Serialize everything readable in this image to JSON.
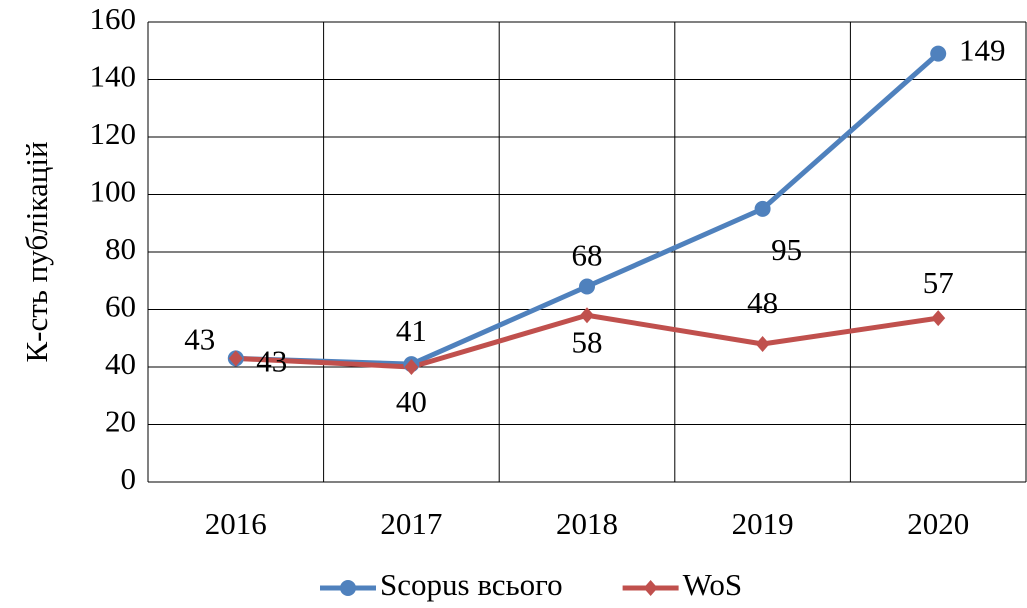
{
  "chart_data": {
    "type": "line",
    "y_label": "К-сть публікацій",
    "categories": [
      "2016",
      "2017",
      "2018",
      "2019",
      "2020"
    ],
    "series": [
      {
        "name": "Scopus всього",
        "color": "#4f81bd",
        "marker": "circle",
        "values": [
          43,
          41,
          68,
          95,
          149
        ]
      },
      {
        "name": "WoS",
        "color": "#c0504d",
        "marker": "diamond",
        "values": [
          43,
          40,
          58,
          48,
          57
        ]
      }
    ],
    "ylim": [
      0,
      160
    ],
    "yticks": [
      0,
      20,
      40,
      60,
      80,
      100,
      120,
      140,
      160
    ],
    "grid": true,
    "legend": "bottom"
  }
}
